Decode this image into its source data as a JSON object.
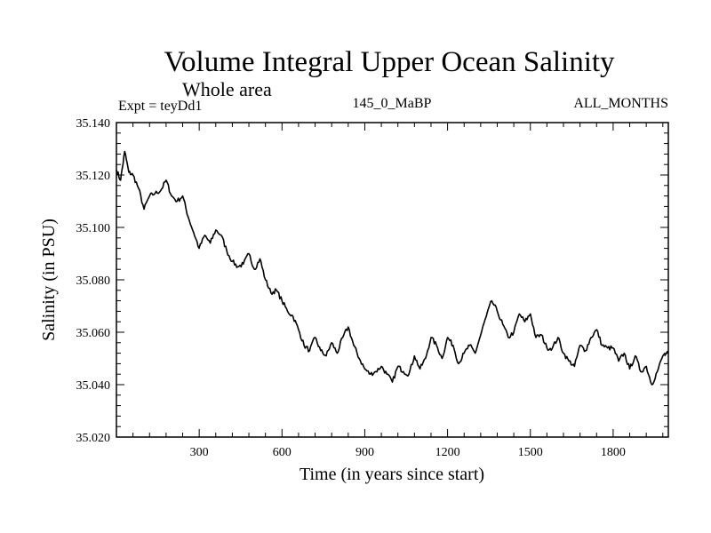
{
  "chart_data": {
    "type": "line",
    "title": "Volume Integral Upper Ocean Salinity",
    "subtitle": "Whole area",
    "left_info": "Expt = teyDd1",
    "center_info": "145_0_MaBP",
    "right_info": "ALL_MONTHS",
    "xlabel": "Time (in years since start)",
    "ylabel": "Salinity (in PSU)",
    "xlim": [
      0,
      2000
    ],
    "ylim": [
      35.02,
      35.14
    ],
    "x_ticks": [
      300,
      600,
      900,
      1200,
      1500,
      1800
    ],
    "x_tick_labels": [
      "300",
      "600",
      "900",
      "1200",
      "1500",
      "1800"
    ],
    "y_ticks": [
      35.02,
      35.04,
      35.06,
      35.08,
      35.1,
      35.12,
      35.14
    ],
    "y_tick_labels": [
      "35.020",
      "35.040",
      "35.060",
      "35.080",
      "35.100",
      "35.120",
      "35.140"
    ],
    "series": [
      {
        "name": "salinity",
        "x": [
          0,
          15,
          30,
          45,
          60,
          80,
          100,
          120,
          140,
          160,
          180,
          200,
          220,
          240,
          260,
          280,
          300,
          320,
          340,
          360,
          380,
          400,
          420,
          440,
          460,
          480,
          500,
          520,
          540,
          560,
          580,
          600,
          620,
          640,
          660,
          680,
          700,
          720,
          740,
          760,
          780,
          800,
          820,
          840,
          860,
          880,
          900,
          920,
          940,
          960,
          980,
          1000,
          1020,
          1040,
          1060,
          1080,
          1100,
          1120,
          1140,
          1160,
          1180,
          1200,
          1220,
          1240,
          1260,
          1280,
          1300,
          1320,
          1340,
          1360,
          1380,
          1400,
          1420,
          1440,
          1460,
          1480,
          1500,
          1520,
          1540,
          1560,
          1580,
          1600,
          1620,
          1640,
          1660,
          1680,
          1700,
          1720,
          1740,
          1760,
          1780,
          1800,
          1820,
          1840,
          1860,
          1880,
          1900,
          1920,
          1940,
          1960,
          1980,
          2000
        ],
        "values": [
          35.122,
          35.118,
          35.129,
          35.121,
          35.12,
          35.115,
          35.107,
          35.112,
          35.113,
          35.114,
          35.118,
          35.112,
          35.11,
          35.112,
          35.104,
          35.098,
          35.092,
          35.097,
          35.094,
          35.099,
          35.097,
          35.091,
          35.087,
          35.085,
          35.086,
          35.09,
          35.084,
          35.088,
          35.08,
          35.075,
          35.076,
          35.072,
          35.068,
          35.066,
          35.061,
          35.055,
          35.053,
          35.058,
          35.053,
          35.051,
          35.056,
          35.052,
          35.058,
          35.062,
          35.055,
          35.05,
          35.046,
          35.044,
          35.045,
          35.047,
          35.044,
          35.041,
          35.047,
          35.045,
          35.044,
          35.051,
          35.046,
          35.05,
          35.058,
          35.055,
          35.05,
          35.058,
          35.055,
          35.048,
          35.052,
          35.055,
          35.052,
          35.059,
          35.066,
          35.072,
          35.068,
          35.063,
          35.058,
          35.06,
          35.067,
          35.064,
          35.067,
          35.058,
          35.059,
          35.054,
          35.054,
          35.058,
          35.052,
          35.049,
          35.047,
          35.055,
          35.053,
          35.058,
          35.061,
          35.055,
          35.054,
          35.054,
          35.049,
          35.052,
          35.046,
          35.051,
          35.045,
          35.047,
          35.04,
          35.045,
          35.051,
          35.052
        ]
      }
    ]
  }
}
